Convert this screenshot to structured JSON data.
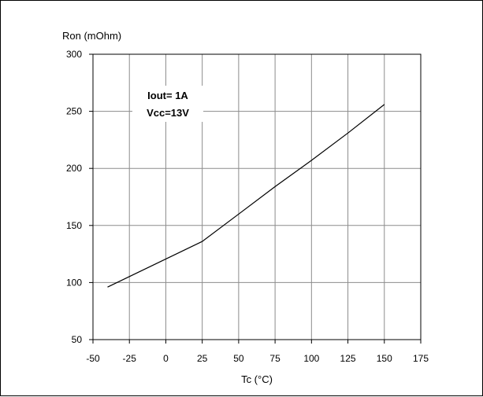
{
  "chart_data": {
    "type": "line",
    "xlabel": "Tc (°C)",
    "ylabel": "Ron (mOhm)",
    "xlim": [
      -50,
      175
    ],
    "ylim": [
      50,
      300
    ],
    "x_ticks": [
      -50,
      -25,
      0,
      25,
      50,
      75,
      100,
      125,
      150,
      175
    ],
    "y_ticks": [
      50,
      100,
      150,
      200,
      250,
      300
    ],
    "grid": true,
    "annotations": [
      "Iout= 1A",
      "Vcc=13V"
    ],
    "series": [
      {
        "x": [
          -40,
          25,
          50,
          75,
          100,
          125,
          150
        ],
        "y": [
          96,
          136,
          160,
          184,
          207,
          231,
          256
        ],
        "color": "#000000"
      }
    ]
  }
}
